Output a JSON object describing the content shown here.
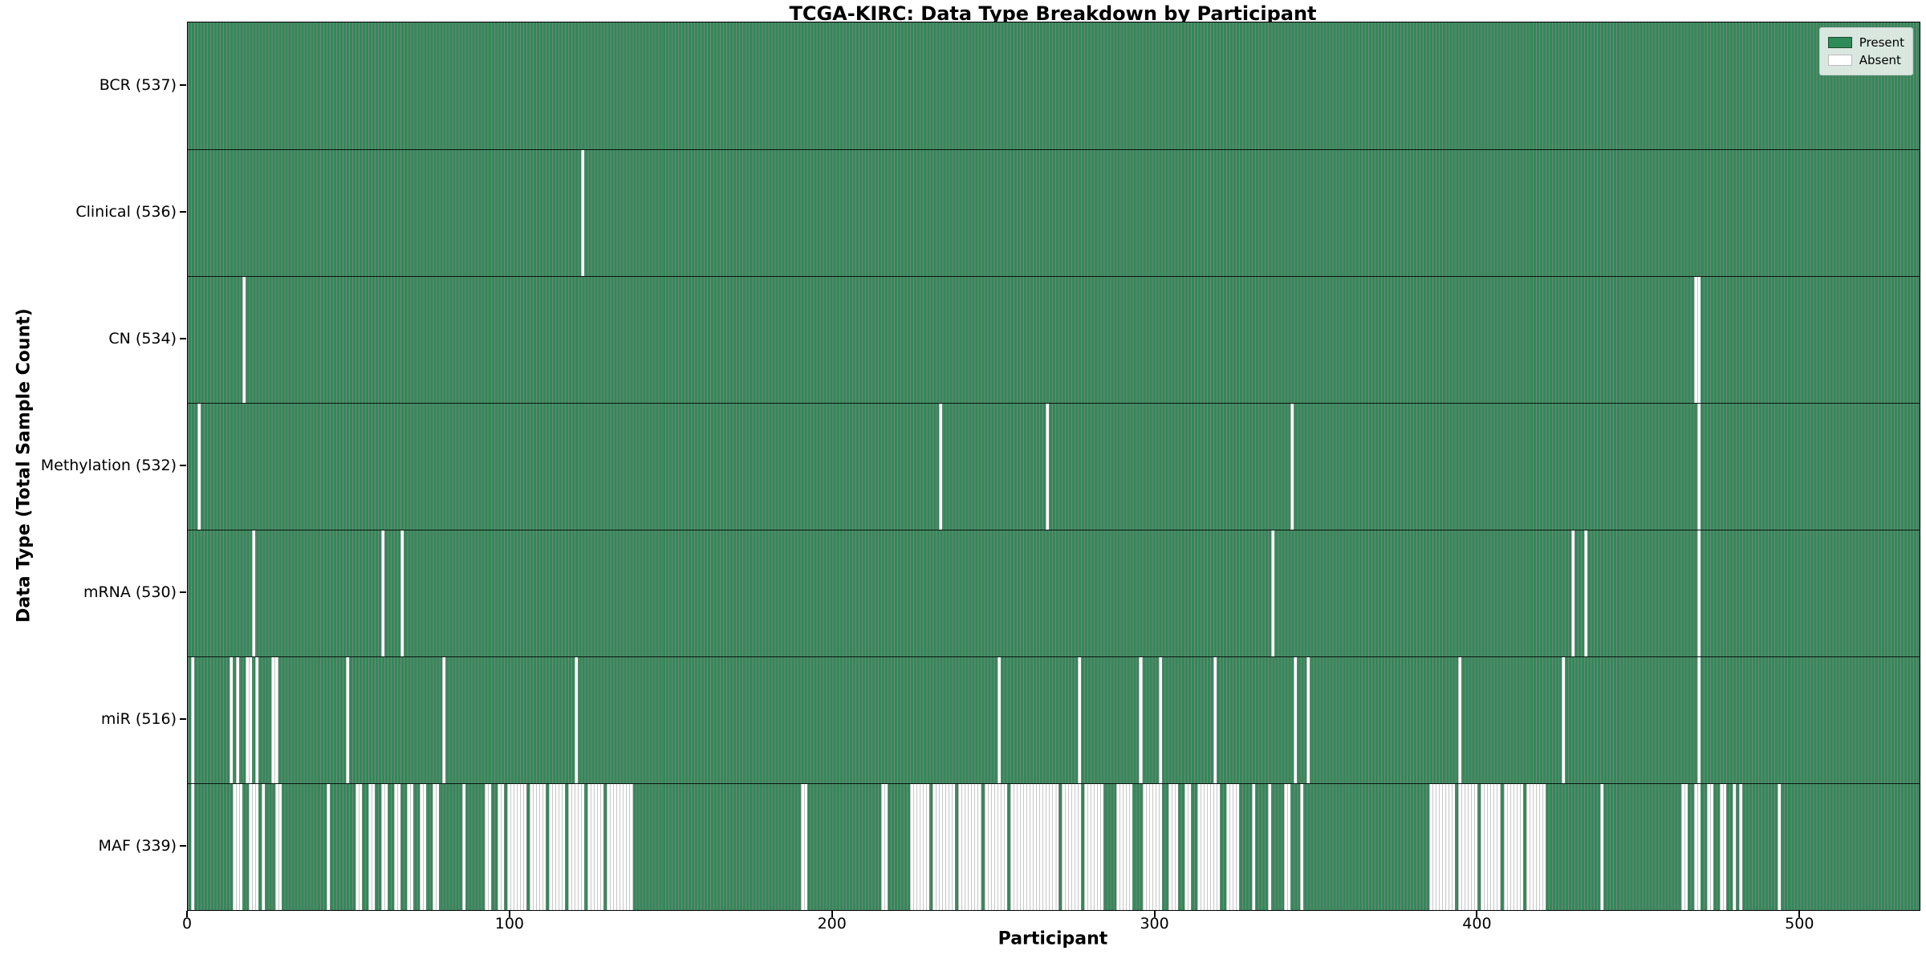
{
  "title": "TCGA-KIRC: Data Type Breakdown by Participant",
  "xlabel": "Participant",
  "ylabel": "Data Type (Total Sample Count)",
  "legend": {
    "present_label": "Present",
    "absent_label": "Absent"
  },
  "colors": {
    "present": "#2e8b57",
    "absent": "#ffffff",
    "present_edge": "rgba(0,0,0,0.5)",
    "absent_edge": "#c7c7c7",
    "spine": "#000000"
  },
  "chart_data": {
    "type": "heatmap",
    "title": "TCGA-KIRC: Data Type Breakdown by Participant",
    "xlabel": "Participant",
    "ylabel": "Data Type (Total Sample Count)",
    "legend_entries": [
      "Present",
      "Absent"
    ],
    "legend_position": "upper right",
    "grid": false,
    "n_participants": 537,
    "x_range": [
      0,
      537
    ],
    "x_ticks": [
      0,
      100,
      200,
      300,
      400,
      500
    ],
    "value_encoding": {
      "present": "green cell",
      "absent": "white cell"
    },
    "rows": [
      {
        "name": "bcr",
        "data_type": "BCR",
        "label": "BCR (537)",
        "present_count": 537,
        "absent_ranges": []
      },
      {
        "name": "clinical",
        "data_type": "Clinical",
        "label": "Clinical (536)",
        "present_count": 536,
        "absent_ranges": [
          [
            122,
            122
          ]
        ]
      },
      {
        "name": "cn",
        "data_type": "CN",
        "label": "CN (534)",
        "present_count": 534,
        "absent_ranges": [
          [
            17,
            17
          ],
          [
            467,
            468
          ]
        ]
      },
      {
        "name": "methylation",
        "data_type": "Methylation",
        "label": "Methylation (532)",
        "present_count": 532,
        "absent_ranges": [
          [
            3,
            3
          ],
          [
            233,
            233
          ],
          [
            266,
            266
          ],
          [
            342,
            342
          ],
          [
            468,
            468
          ]
        ]
      },
      {
        "name": "mrna",
        "data_type": "mRNA",
        "label": "mRNA (530)",
        "present_count": 530,
        "absent_ranges": [
          [
            20,
            20
          ],
          [
            60,
            60
          ],
          [
            66,
            66
          ],
          [
            336,
            336
          ],
          [
            429,
            429
          ],
          [
            433,
            433
          ],
          [
            468,
            468
          ]
        ]
      },
      {
        "name": "mir",
        "data_type": "miR",
        "label": "miR (516)",
        "present_count": 516,
        "absent_ranges": [
          [
            1,
            1
          ],
          [
            13,
            13
          ],
          [
            15,
            15
          ],
          [
            18,
            19
          ],
          [
            21,
            21
          ],
          [
            26,
            27
          ],
          [
            49,
            49
          ],
          [
            79,
            79
          ],
          [
            120,
            120
          ],
          [
            251,
            251
          ],
          [
            276,
            276
          ],
          [
            295,
            295
          ],
          [
            301,
            301
          ],
          [
            318,
            318
          ],
          [
            343,
            343
          ],
          [
            347,
            347
          ],
          [
            394,
            394
          ],
          [
            426,
            426
          ],
          [
            468,
            468
          ]
        ]
      },
      {
        "name": "maf",
        "data_type": "MAF",
        "label": "MAF (339)",
        "present_count": 339,
        "absent_ranges": [
          [
            1,
            1
          ],
          [
            14,
            16
          ],
          [
            19,
            21
          ],
          [
            23,
            23
          ],
          [
            27,
            28
          ],
          [
            43,
            43
          ],
          [
            52,
            53
          ],
          [
            56,
            57
          ],
          [
            60,
            61
          ],
          [
            64,
            65
          ],
          [
            68,
            69
          ],
          [
            72,
            73
          ],
          [
            76,
            77
          ],
          [
            85,
            85
          ],
          [
            92,
            93
          ],
          [
            96,
            97
          ],
          [
            99,
            104
          ],
          [
            106,
            110
          ],
          [
            112,
            116
          ],
          [
            118,
            122
          ],
          [
            124,
            128
          ],
          [
            130,
            137
          ],
          [
            190,
            191
          ],
          [
            215,
            216
          ],
          [
            224,
            229
          ],
          [
            231,
            237
          ],
          [
            239,
            245
          ],
          [
            247,
            253
          ],
          [
            255,
            269
          ],
          [
            271,
            276
          ],
          [
            278,
            283
          ],
          [
            288,
            292
          ],
          [
            296,
            301
          ],
          [
            304,
            306
          ],
          [
            309,
            310
          ],
          [
            313,
            319
          ],
          [
            322,
            325
          ],
          [
            330,
            330
          ],
          [
            335,
            335
          ],
          [
            340,
            341
          ],
          [
            345,
            345
          ],
          [
            385,
            392
          ],
          [
            394,
            399
          ],
          [
            401,
            406
          ],
          [
            408,
            413
          ],
          [
            415,
            420
          ],
          [
            438,
            438
          ],
          [
            463,
            464
          ],
          [
            467,
            468
          ],
          [
            471,
            472
          ],
          [
            475,
            476
          ],
          [
            479,
            479
          ],
          [
            481,
            481
          ],
          [
            493,
            493
          ]
        ]
      }
    ]
  }
}
